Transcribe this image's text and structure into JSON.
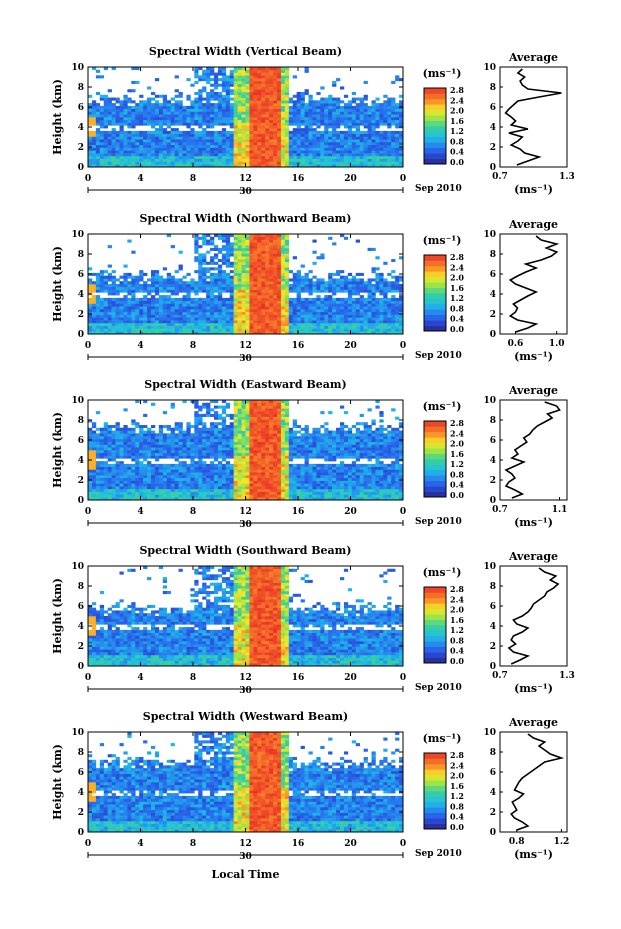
{
  "chart_data": [
    {
      "type": "heatmap",
      "title": "Spectral Width (Vertical Beam)",
      "ylabel": "Height (km)",
      "x_ticks": [
        "0",
        "4",
        "8",
        "12",
        "16",
        "20",
        "0"
      ],
      "y_ticks": [
        "0",
        "2",
        "4",
        "6",
        "8",
        "10"
      ],
      "xlim": [
        0,
        24
      ],
      "ylim": [
        0,
        10
      ],
      "date_day": "30",
      "date_label": "Sep 2010",
      "colorbar": {
        "unit": "(ms⁻¹)",
        "ticks": [
          "2.8",
          "2.4",
          "2.0",
          "1.6",
          "1.2",
          "0.8",
          "0.4",
          "0.0"
        ],
        "range": [
          0,
          2.8
        ]
      },
      "avg": {
        "title": "Average",
        "xlabel": "(ms⁻¹)",
        "x_ticks": [
          "0.7",
          "1.3"
        ],
        "xlim": [
          0.7,
          1.3
        ],
        "y": [
          0.2,
          0.6,
          1.0,
          1.4,
          1.8,
          2.2,
          2.6,
          3.0,
          3.4,
          3.8,
          4.2,
          4.6,
          5.0,
          5.4,
          5.8,
          6.2,
          6.6,
          7.0,
          7.4,
          7.8,
          8.2,
          8.6,
          9.0,
          9.4,
          9.8
        ],
        "x": [
          0.85,
          0.95,
          1.05,
          0.92,
          0.88,
          0.8,
          0.86,
          0.9,
          0.78,
          0.95,
          0.8,
          0.84,
          0.8,
          0.75,
          0.78,
          0.82,
          0.86,
          1.05,
          1.25,
          0.95,
          0.9,
          0.88,
          0.92,
          0.86,
          0.9
        ]
      }
    },
    {
      "type": "heatmap",
      "title": "Spectral Width (Northward Beam)",
      "ylabel": "Height (km)",
      "x_ticks": [
        "0",
        "4",
        "8",
        "12",
        "16",
        "20",
        "0"
      ],
      "y_ticks": [
        "0",
        "2",
        "4",
        "6",
        "8",
        "10"
      ],
      "xlim": [
        0,
        24
      ],
      "ylim": [
        0,
        10
      ],
      "date_day": "30",
      "date_label": "Sep 2010",
      "colorbar": {
        "unit": "(ms⁻¹)",
        "ticks": [
          "2.8",
          "2.4",
          "2.0",
          "1.6",
          "1.2",
          "0.8",
          "0.4",
          "0.0"
        ],
        "range": [
          0,
          2.8
        ]
      },
      "avg": {
        "title": "Average",
        "xlabel": "(ms⁻¹)",
        "x_ticks": [
          "0.6",
          "1.0"
        ],
        "xlim": [
          0.45,
          1.1
        ],
        "y": [
          0.2,
          0.6,
          1.0,
          1.4,
          1.8,
          2.2,
          2.6,
          3.0,
          3.4,
          3.8,
          4.2,
          4.6,
          5.0,
          5.4,
          5.8,
          6.2,
          6.6,
          7.0,
          7.4,
          7.8,
          8.2,
          8.6,
          9.0,
          9.4,
          9.8
        ],
        "x": [
          0.6,
          0.72,
          0.8,
          0.62,
          0.55,
          0.6,
          0.62,
          0.58,
          0.65,
          0.72,
          0.8,
          0.7,
          0.6,
          0.55,
          0.62,
          0.7,
          0.8,
          0.7,
          0.85,
          0.95,
          1.0,
          0.9,
          1.0,
          0.85,
          0.8
        ]
      }
    },
    {
      "type": "heatmap",
      "title": "Spectral Width (Eastward Beam)",
      "ylabel": "Height (km)",
      "x_ticks": [
        "0",
        "4",
        "8",
        "12",
        "16",
        "20",
        "0"
      ],
      "y_ticks": [
        "0",
        "2",
        "4",
        "6",
        "8",
        "10"
      ],
      "xlim": [
        0,
        24
      ],
      "ylim": [
        0,
        10
      ],
      "date_day": "30",
      "date_label": "Sep 2010",
      "colorbar": {
        "unit": "(ms⁻¹)",
        "ticks": [
          "2.8",
          "2.4",
          "2.0",
          "1.6",
          "1.2",
          "0.8",
          "0.4",
          "0.0"
        ],
        "range": [
          0,
          2.8
        ]
      },
      "avg": {
        "title": "Average",
        "xlabel": "(ms⁻¹)",
        "x_ticks": [
          "0.7",
          "1.1"
        ],
        "xlim": [
          0.7,
          1.15
        ],
        "y": [
          0.2,
          0.6,
          1.0,
          1.4,
          1.8,
          2.2,
          2.6,
          3.0,
          3.4,
          3.8,
          4.2,
          4.6,
          5.0,
          5.4,
          5.8,
          6.2,
          6.6,
          7.0,
          7.4,
          7.8,
          8.2,
          8.6,
          9.0,
          9.4,
          9.8
        ],
        "x": [
          0.78,
          0.85,
          0.8,
          0.74,
          0.76,
          0.8,
          0.78,
          0.74,
          0.8,
          0.86,
          0.78,
          0.82,
          0.8,
          0.84,
          0.88,
          0.86,
          0.9,
          0.92,
          0.95,
          1.0,
          1.05,
          1.02,
          1.1,
          1.08,
          1.0
        ]
      }
    },
    {
      "type": "heatmap",
      "title": "Spectral Width (Southward Beam)",
      "ylabel": "Height (km)",
      "x_ticks": [
        "0",
        "4",
        "8",
        "12",
        "16",
        "20",
        "0"
      ],
      "y_ticks": [
        "0",
        "2",
        "4",
        "6",
        "8",
        "10"
      ],
      "xlim": [
        0,
        24
      ],
      "ylim": [
        0,
        10
      ],
      "date_day": "30",
      "date_label": "Sep 2010",
      "colorbar": {
        "unit": "(ms⁻¹)",
        "ticks": [
          "2.8",
          "2.4",
          "2.0",
          "1.6",
          "1.2",
          "0.8",
          "0.4",
          "0.0"
        ],
        "range": [
          0,
          2.8
        ]
      },
      "avg": {
        "title": "Average",
        "xlabel": "(ms⁻¹)",
        "x_ticks": [
          "0.7",
          "1.3"
        ],
        "xlim": [
          0.7,
          1.3
        ],
        "y": [
          0.2,
          0.6,
          1.0,
          1.4,
          1.8,
          2.2,
          2.6,
          3.0,
          3.4,
          3.8,
          4.2,
          4.6,
          5.0,
          5.4,
          5.8,
          6.2,
          6.6,
          7.0,
          7.4,
          7.8,
          8.2,
          8.6,
          9.0,
          9.4,
          9.8
        ],
        "x": [
          0.8,
          0.88,
          0.95,
          0.82,
          0.78,
          0.84,
          0.8,
          0.82,
          0.9,
          0.95,
          0.85,
          0.82,
          0.9,
          0.95,
          0.98,
          1.0,
          1.05,
          1.1,
          1.12,
          1.18,
          1.22,
          1.15,
          1.2,
          1.1,
          1.05
        ]
      }
    },
    {
      "type": "heatmap",
      "title": "Spectral Width (Westward Beam)",
      "ylabel": "Height (km)",
      "x_ticks": [
        "0",
        "4",
        "8",
        "12",
        "16",
        "20",
        "0"
      ],
      "y_ticks": [
        "0",
        "2",
        "4",
        "6",
        "8",
        "10"
      ],
      "xlim": [
        0,
        24
      ],
      "ylim": [
        0,
        10
      ],
      "date_day": "30",
      "date_label": "Sep 2010",
      "xlabel": "Local Time",
      "colorbar": {
        "unit": "(ms⁻¹)",
        "ticks": [
          "2.8",
          "2.4",
          "2.0",
          "1.6",
          "1.2",
          "0.8",
          "0.4",
          "0.0"
        ],
        "range": [
          0,
          2.8
        ]
      },
      "avg": {
        "title": "Average",
        "xlabel": "(ms⁻¹)",
        "x_ticks": [
          "0.8",
          "1.2"
        ],
        "xlim": [
          0.65,
          1.25
        ],
        "y": [
          0.2,
          0.6,
          1.0,
          1.4,
          1.8,
          2.2,
          2.6,
          3.0,
          3.4,
          3.8,
          4.2,
          4.6,
          5.0,
          5.4,
          5.8,
          6.2,
          6.6,
          7.0,
          7.4,
          7.8,
          8.2,
          8.6,
          9.0,
          9.4,
          9.8
        ],
        "x": [
          0.8,
          0.9,
          0.85,
          0.78,
          0.75,
          0.8,
          0.78,
          0.76,
          0.82,
          0.86,
          0.78,
          0.8,
          0.82,
          0.85,
          0.9,
          0.95,
          1.0,
          1.05,
          1.2,
          1.1,
          1.05,
          1.0,
          1.05,
          0.95,
          0.9
        ]
      }
    }
  ]
}
